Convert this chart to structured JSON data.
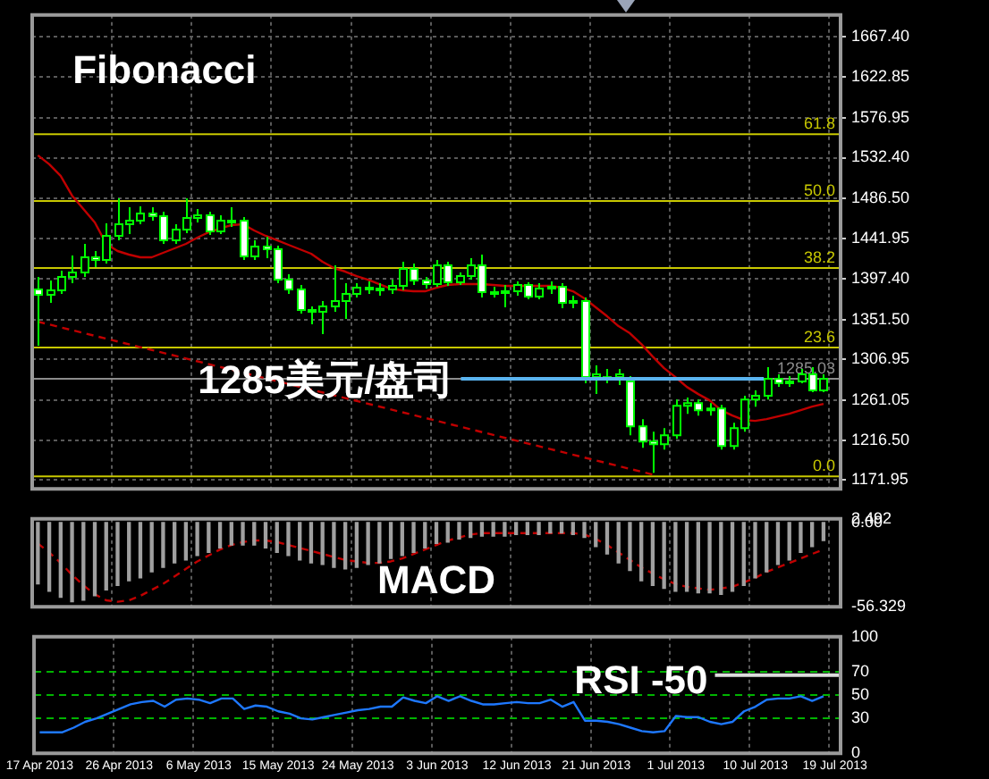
{
  "chart_data": [
    {
      "type": "candlestick",
      "title": "Fibonacci",
      "tick_labels": "y",
      "grid": true,
      "ohlc": [
        [
          1385,
          1399,
          1322,
          1379
        ],
        [
          1379,
          1395,
          1370,
          1384
        ],
        [
          1384,
          1406,
          1380,
          1399
        ],
        [
          1399,
          1423,
          1392,
          1404
        ],
        [
          1404,
          1436,
          1399,
          1421
        ],
        [
          1421,
          1428,
          1410,
          1418
        ],
        [
          1418,
          1459,
          1414,
          1445
        ],
        [
          1445,
          1487,
          1440,
          1458
        ],
        [
          1458,
          1477,
          1447,
          1462
        ],
        [
          1462,
          1478,
          1458,
          1470
        ],
        [
          1470,
          1477,
          1462,
          1467
        ],
        [
          1467,
          1472,
          1436,
          1440
        ],
        [
          1440,
          1458,
          1436,
          1452
        ],
        [
          1452,
          1487,
          1448,
          1465
        ],
        [
          1465,
          1475,
          1460,
          1468
        ],
        [
          1468,
          1472,
          1446,
          1450
        ],
        [
          1450,
          1468,
          1447,
          1462
        ],
        [
          1462,
          1477,
          1455,
          1462
        ],
        [
          1462,
          1466,
          1418,
          1422
        ],
        [
          1422,
          1440,
          1418,
          1433
        ],
        [
          1433,
          1444,
          1420,
          1430
        ],
        [
          1430,
          1434,
          1392,
          1396
        ],
        [
          1396,
          1402,
          1380,
          1385
        ],
        [
          1385,
          1390,
          1358,
          1362
        ],
        [
          1362,
          1366,
          1346,
          1360
        ],
        [
          1360,
          1372,
          1335,
          1366
        ],
        [
          1366,
          1412,
          1360,
          1372
        ],
        [
          1372,
          1392,
          1352,
          1380
        ],
        [
          1380,
          1392,
          1376,
          1387
        ],
        [
          1387,
          1394,
          1380,
          1386
        ],
        [
          1386,
          1392,
          1378,
          1385
        ],
        [
          1385,
          1396,
          1380,
          1389
        ],
        [
          1389,
          1416,
          1384,
          1408
        ],
        [
          1408,
          1414,
          1390,
          1395
        ],
        [
          1395,
          1399,
          1386,
          1391
        ],
        [
          1391,
          1418,
          1388,
          1412
        ],
        [
          1412,
          1416,
          1389,
          1393
        ],
        [
          1393,
          1404,
          1390,
          1400
        ],
        [
          1400,
          1420,
          1396,
          1412
        ],
        [
          1412,
          1424,
          1376,
          1382
        ],
        [
          1382,
          1388,
          1376,
          1381
        ],
        [
          1381,
          1390,
          1365,
          1383
        ],
        [
          1383,
          1394,
          1378,
          1390
        ],
        [
          1390,
          1393,
          1374,
          1377
        ],
        [
          1377,
          1392,
          1374,
          1386
        ],
        [
          1386,
          1394,
          1380,
          1388
        ],
        [
          1388,
          1392,
          1364,
          1370
        ],
        [
          1370,
          1378,
          1364,
          1372
        ],
        [
          1372,
          1376,
          1280,
          1287
        ],
        [
          1287,
          1300,
          1268,
          1290
        ],
        [
          1287,
          1296,
          1280,
          1287
        ],
        [
          1287,
          1296,
          1278,
          1290
        ],
        [
          1282,
          1288,
          1222,
          1232
        ],
        [
          1232,
          1240,
          1208,
          1215
        ],
        [
          1215,
          1226,
          1180,
          1212
        ],
        [
          1212,
          1230,
          1206,
          1222
        ],
        [
          1222,
          1262,
          1218,
          1255
        ],
        [
          1255,
          1264,
          1246,
          1258
        ],
        [
          1258,
          1262,
          1244,
          1250
        ],
        [
          1250,
          1258,
          1244,
          1252
        ],
        [
          1252,
          1256,
          1206,
          1210
        ],
        [
          1210,
          1236,
          1206,
          1230
        ],
        [
          1230,
          1266,
          1226,
          1262
        ],
        [
          1262,
          1272,
          1254,
          1266
        ],
        [
          1266,
          1298,
          1262,
          1285
        ],
        [
          1285,
          1290,
          1276,
          1280
        ],
        [
          1280,
          1288,
          1276,
          1282
        ],
        [
          1282,
          1296,
          1280,
          1290
        ],
        [
          1290,
          1298,
          1270,
          1272
        ],
        [
          1272,
          1290,
          1270,
          1285
        ],
        null
      ],
      "series": [
        {
          "type": "line",
          "color": "#c00000",
          "values": [
            1535,
            1525,
            1512,
            1490,
            1475,
            1460,
            1436,
            1428,
            1424,
            1421,
            1421,
            1426,
            1431,
            1436,
            1443,
            1449,
            1453,
            1457,
            1458,
            1451,
            1445,
            1440,
            1435,
            1430,
            1425,
            1416,
            1409,
            1405,
            1400,
            1396,
            1391,
            1386,
            1384,
            1383,
            1383,
            1387,
            1390,
            1391,
            1391,
            1391,
            1390,
            1389,
            1389,
            1389,
            1389,
            1389,
            1387,
            1383,
            1375,
            1365,
            1355,
            1344,
            1336,
            1324,
            1310,
            1297,
            1287,
            1276,
            1268,
            1261,
            1250,
            1244,
            1239,
            1238,
            1240,
            1243,
            1246,
            1250,
            1254,
            1257,
            null
          ]
        },
        {
          "type": "line",
          "color": "#c00000",
          "line_style": "dashed",
          "values": [
            1349,
            null,
            null,
            null,
            null,
            null,
            null,
            null,
            null,
            null,
            null,
            null,
            null,
            null,
            null,
            null,
            null,
            null,
            null,
            null,
            null,
            null,
            null,
            null,
            null,
            null,
            null,
            null,
            null,
            null,
            null,
            null,
            null,
            null,
            null,
            null,
            null,
            null,
            null,
            null,
            null,
            null,
            null,
            null,
            null,
            null,
            null,
            null,
            null,
            null,
            null,
            null,
            null,
            null,
            1178,
            null,
            null,
            null,
            null,
            null,
            null,
            null,
            null,
            null,
            null,
            null,
            null,
            null,
            null,
            null,
            null
          ]
        }
      ],
      "ylim": [
        1162,
        1692
      ],
      "yticks": [
        {
          "value": 1171.95,
          "label": "1171.95"
        },
        {
          "value": 1216.5,
          "label": "1216.50"
        },
        {
          "value": 1261.05,
          "label": "1261.05"
        },
        {
          "value": 1306.95,
          "label": "1306.95"
        },
        {
          "value": 1351.5,
          "label": "1351.50"
        },
        {
          "value": 1397.4,
          "label": "1397.40"
        },
        {
          "value": 1441.95,
          "label": "1441.95"
        },
        {
          "value": 1486.5,
          "label": "1486.50"
        },
        {
          "value": 1532.4,
          "label": "1532.40"
        },
        {
          "value": 1576.95,
          "label": "1576.95"
        },
        {
          "value": 1622.85,
          "label": "1622.85"
        },
        {
          "value": 1667.4,
          "label": "1667.40"
        }
      ],
      "ref_lines": [
        {
          "axis": "y",
          "value": 1558.6,
          "color": "#c8c800"
        },
        {
          "axis": "y",
          "value": 1484,
          "color": "#c8c800"
        },
        {
          "axis": "y",
          "value": 1409,
          "color": "#c8c800"
        },
        {
          "axis": "y",
          "value": 1320,
          "color": "#c8c800"
        },
        {
          "axis": "y",
          "value": 1176,
          "color": "#c8c800"
        },
        {
          "axis": "y",
          "value": 1285.03,
          "label": "1285.03",
          "color": "#8c8c8c"
        }
      ],
      "annotations": [
        {
          "text": "1285美元/盘司",
          "y": 1285
        },
        {
          "text": "61.8",
          "y": 1558.6
        },
        {
          "text": "50.0",
          "y": 1484
        },
        {
          "text": "38.2",
          "y": 1409
        },
        {
          "text": "23.6",
          "y": 1320
        },
        {
          "text": "0.0",
          "y": 1176
        }
      ]
    },
    {
      "type": "bar",
      "title": "MACD",
      "tick_labels": "y",
      "grid": "x",
      "series": [
        {
          "type": "bar",
          "color": "#a0a0a0",
          "values": [
            -41,
            -46,
            -50,
            -53,
            -52,
            -49,
            -45,
            -42,
            -39,
            -37,
            -33,
            -30,
            -27,
            -25,
            -22,
            -20,
            -17,
            -15,
            -15,
            -15,
            -17,
            -20,
            -22,
            -25,
            -27,
            -28,
            -30,
            -31,
            -30,
            -28,
            -27,
            -24,
            -22,
            -20,
            -17,
            -14,
            -13,
            -11,
            -10,
            -9,
            -9,
            -9,
            -8,
            -8,
            -8,
            -7,
            -7,
            -8,
            -10,
            -16,
            -21,
            -27,
            -32,
            -39,
            -42,
            -44,
            -46,
            -46,
            -47,
            -47,
            -48,
            -46,
            -42,
            -37,
            -33,
            -28,
            -25,
            -20,
            -16,
            -12,
            null
          ]
        },
        {
          "type": "line",
          "color": "#c00000",
          "line_style": "dashed",
          "values": [
            -14,
            -20,
            -27,
            -35,
            -42,
            -48,
            -52,
            -53,
            -52,
            -49,
            -45,
            -41,
            -36,
            -31,
            -26,
            -22,
            -18,
            -15,
            -13,
            -12,
            -12,
            -13,
            -15,
            -17,
            -19,
            -21,
            -23,
            -25,
            -26,
            -27,
            -27,
            -26,
            -24,
            -21,
            -18,
            -15,
            -12,
            -10,
            -8,
            -7,
            -7,
            -7,
            -7,
            -7,
            -7,
            -7,
            -7,
            -7,
            -8,
            -11,
            -15,
            -20,
            -25,
            -30,
            -34,
            -38,
            -41,
            -43,
            -44,
            -45,
            -44,
            -43,
            -40,
            -37,
            -33,
            -30,
            -27,
            -24,
            -21,
            -18,
            null
          ]
        }
      ],
      "ylim": [
        -56.329,
        2.492
      ],
      "yticks": [
        {
          "value": 2.492,
          "label": "2.492"
        },
        {
          "value": 0,
          "label": "0.00"
        },
        {
          "value": -56.329,
          "label": "-56.329"
        }
      ]
    },
    {
      "type": "line",
      "grid": "x",
      "categories": [
        "17 Apr 2013",
        null,
        null,
        null,
        null,
        null,
        null,
        "26 Apr 2013",
        null,
        null,
        null,
        null,
        null,
        null,
        "6 May 2013",
        null,
        null,
        null,
        null,
        null,
        null,
        "15 May 2013",
        null,
        null,
        null,
        null,
        null,
        null,
        "24 May 2013",
        null,
        null,
        null,
        null,
        null,
        null,
        "3 Jun 2013",
        null,
        null,
        null,
        null,
        null,
        null,
        "12 Jun 2013",
        null,
        null,
        null,
        null,
        null,
        null,
        "21 Jun 2013",
        null,
        null,
        null,
        null,
        null,
        null,
        "1 Jul 2013",
        null,
        null,
        null,
        null,
        null,
        null,
        "10 Jul 2013",
        null,
        null,
        null,
        null,
        null,
        null,
        "19 Jul 2013"
      ],
      "series": [
        {
          "color": "#1e78ff",
          "values": [
            18,
            18,
            18,
            22,
            27,
            30,
            34,
            38,
            42,
            44,
            45,
            40,
            46,
            47,
            46,
            43,
            47,
            47,
            38,
            41,
            40,
            36,
            34,
            30,
            29,
            31,
            33,
            35,
            37,
            38,
            40,
            40,
            48,
            45,
            43,
            49,
            45,
            49,
            45,
            42,
            42,
            43,
            44,
            43,
            43,
            46,
            40,
            44,
            28,
            28,
            27,
            25,
            22,
            19,
            18,
            19,
            32,
            31,
            31,
            27,
            25,
            27,
            36,
            40,
            46,
            47,
            47,
            49,
            45,
            49,
            null
          ]
        }
      ],
      "ylim": [
        0,
        100
      ],
      "yticks": [
        0,
        30,
        50,
        70,
        100
      ],
      "ref_lines": [
        {
          "axis": "y",
          "value": 70,
          "color": "#00b400",
          "line_style": "dashed"
        },
        {
          "axis": "y",
          "value": 50,
          "color": "#00b400",
          "line_style": "dashed"
        },
        {
          "axis": "y",
          "value": 30,
          "color": "#00b400",
          "line_style": "dashed"
        }
      ],
      "annotations": [
        {
          "text": "RSI -50",
          "y": 50
        }
      ]
    }
  ]
}
